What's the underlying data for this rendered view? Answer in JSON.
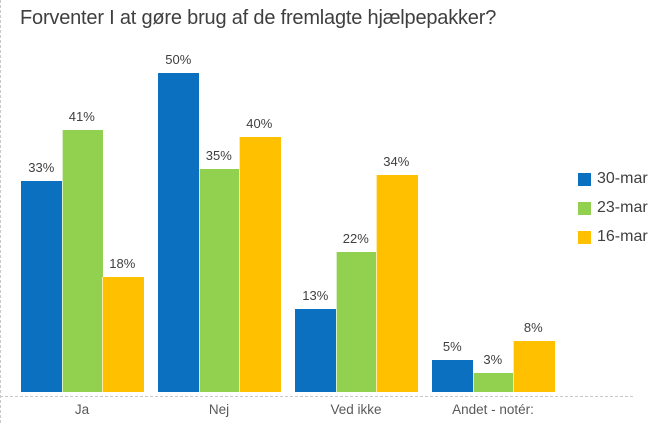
{
  "title": "Forventer I at gøre brug af de fremlagte hjælpepakker?",
  "chart_data": {
    "type": "bar",
    "title": "Forventer I at gøre brug af de fremlagte hjælpepakker?",
    "categories": [
      "Ja",
      "Nej",
      "Ved ikke",
      "Andet - notér:"
    ],
    "series": [
      {
        "name": "30-mar",
        "color": "#0b70c0",
        "values": [
          33,
          50,
          13,
          5
        ]
      },
      {
        "name": "23-mar",
        "color": "#92d050",
        "values": [
          41,
          35,
          22,
          3
        ]
      },
      {
        "name": "16-mar",
        "color": "#ffc000",
        "values": [
          18,
          40,
          34,
          8
        ]
      }
    ],
    "value_suffix": "%",
    "ylim": [
      0,
      50
    ],
    "grid": false,
    "data_labels": true,
    "legend_position": "right",
    "background_color": "#ffffff",
    "text_colors": {
      "title": "#3f3f3f",
      "data_label": "#404040",
      "category_label": "#595959",
      "legend_label": "#404040"
    }
  }
}
